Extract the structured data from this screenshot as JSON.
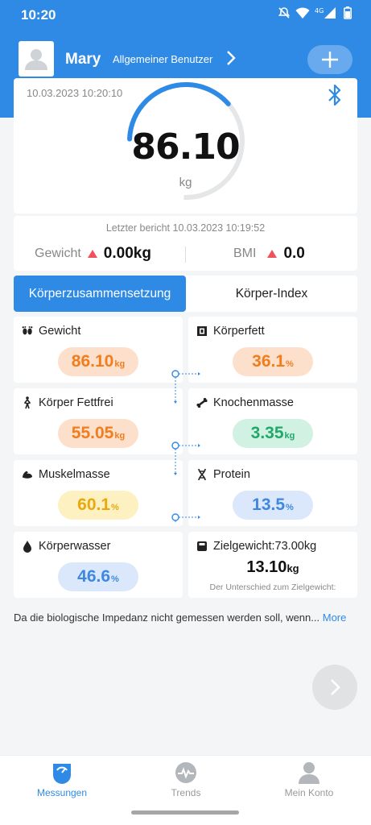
{
  "status_bar": {
    "time": "10:20"
  },
  "header": {
    "user_name": "Mary",
    "user_type": "Allgemeiner Benutzer"
  },
  "measurement": {
    "datetime": "10.03.2023 10:20:10",
    "weight": "86.10",
    "unit": "kg"
  },
  "last_report": {
    "text": "Letzter bericht 10.03.2023 10:19:52",
    "weight_label": "Gewicht",
    "weight_diff": "0.00kg",
    "bmi_label": "BMI",
    "bmi_diff": "0.0"
  },
  "tabs": {
    "active": "Körperzusammensetzung",
    "inactive": "Körper-Index"
  },
  "metrics": {
    "gewicht": {
      "label": "Gewicht",
      "value": "86.10",
      "unit": "kg"
    },
    "koerperfett": {
      "label": "Körperfett",
      "value": "36.1",
      "unit": "%"
    },
    "fettfrei": {
      "label": "Körper Fettfrei",
      "value": "55.05",
      "unit": "kg"
    },
    "knochen": {
      "label": "Knochenmasse",
      "value": "3.35",
      "unit": "kg"
    },
    "muskel": {
      "label": "Muskelmasse",
      "value": "60.1",
      "unit": "%"
    },
    "protein": {
      "label": "Protein",
      "value": "13.5",
      "unit": "%"
    },
    "wasser": {
      "label": "Körperwasser",
      "value": "46.6",
      "unit": "%"
    },
    "ziel": {
      "label": "Zielgewicht:73.00kg",
      "value": "13.10",
      "unit": "kg",
      "note": "Der Unterschied zum Zielgewicht:"
    }
  },
  "disclaimer": {
    "text": "Da die biologische Impedanz nicht gemessen werden soll, wenn...",
    "more": "More"
  },
  "bottom_nav": {
    "measurements": "Messungen",
    "trends": "Trends",
    "account": "Mein Konto"
  },
  "colors": {
    "primary": "#2f8ae6",
    "orange": "#f07d1e",
    "green": "#22a86a",
    "yellow": "#e8a90e",
    "blue": "#3f87e0",
    "red": "#f0515d"
  },
  "icons": {
    "status": [
      "notifications-off-icon",
      "wifi-icon",
      "signal-4g-icon",
      "battery-icon"
    ],
    "header": [
      "avatar-icon",
      "chevron-right-icon",
      "plus-icon"
    ],
    "card": [
      "bluetooth-icon"
    ],
    "metrics": [
      "footprints-icon",
      "body-fat-icon",
      "lean-body-icon",
      "bone-icon",
      "muscle-icon",
      "protein-dna-icon",
      "water-drop-icon",
      "goal-scale-icon"
    ],
    "nav": [
      "scale-icon",
      "trends-pulse-icon",
      "user-icon"
    ]
  },
  "gauge": {
    "progress": 0.38
  }
}
